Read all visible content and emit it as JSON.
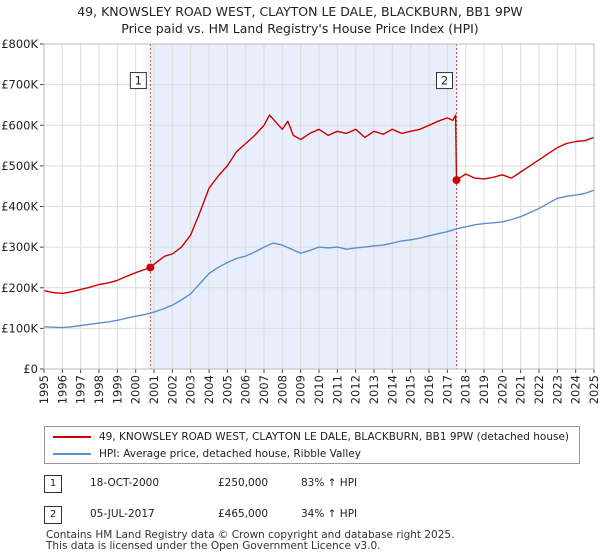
{
  "title_line1": "49, KNOWSLEY ROAD WEST, CLAYTON LE DALE, BLACKBURN, BB1 9PW",
  "title_line2": "Price paid vs. HM Land Registry's House Price Index (HPI)",
  "chart_data": {
    "type": "line",
    "title": "49, KNOWSLEY ROAD WEST, CLAYTON LE DALE, BLACKBURN, BB1 9PW — Price paid vs. HM Land Registry's House Price Index (HPI)",
    "xlim": [
      1995,
      2025
    ],
    "ylim": [
      0,
      800000
    ],
    "grid": true,
    "legend_position": "below",
    "x_ticks": [
      "1995",
      "1996",
      "1997",
      "1998",
      "1999",
      "2000",
      "2001",
      "2002",
      "2003",
      "2004",
      "2005",
      "2006",
      "2007",
      "2008",
      "2009",
      "2010",
      "2011",
      "2012",
      "2013",
      "2014",
      "2015",
      "2016",
      "2017",
      "2018",
      "2019",
      "2020",
      "2021",
      "2022",
      "2023",
      "2024",
      "2025"
    ],
    "y_ticks": [
      {
        "value": 0,
        "label": "£0"
      },
      {
        "value": 100000,
        "label": "£100K"
      },
      {
        "value": 200000,
        "label": "£200K"
      },
      {
        "value": 300000,
        "label": "£300K"
      },
      {
        "value": 400000,
        "label": "£400K"
      },
      {
        "value": 500000,
        "label": "£500K"
      },
      {
        "value": 600000,
        "label": "£600K"
      },
      {
        "value": 700000,
        "label": "£700K"
      },
      {
        "value": 800000,
        "label": "£800K"
      }
    ],
    "shaded_range": [
      2000.8,
      2017.5
    ],
    "series": [
      {
        "name": "49, KNOWSLEY ROAD WEST, CLAYTON LE DALE, BLACKBURN, BB1 9PW (detached house)",
        "color": "#cc0000",
        "x": [
          1995.0,
          1995.5,
          1996.0,
          1996.5,
          1997.0,
          1997.5,
          1998.0,
          1998.5,
          1999.0,
          1999.5,
          2000.0,
          2000.5,
          2000.8,
          2001.2,
          2001.6,
          2002.0,
          2002.5,
          2003.0,
          2003.5,
          2004.0,
          2004.5,
          2005.0,
          2005.5,
          2006.0,
          2006.5,
          2007.0,
          2007.3,
          2007.6,
          2008.0,
          2008.3,
          2008.6,
          2009.0,
          2009.5,
          2010.0,
          2010.5,
          2011.0,
          2011.5,
          2012.0,
          2012.5,
          2013.0,
          2013.5,
          2014.0,
          2014.5,
          2015.0,
          2015.5,
          2016.0,
          2016.5,
          2017.0,
          2017.3,
          2017.45,
          2017.5,
          2018.0,
          2018.5,
          2019.0,
          2019.5,
          2020.0,
          2020.5,
          2021.0,
          2021.5,
          2022.0,
          2022.5,
          2023.0,
          2023.5,
          2024.0,
          2024.5,
          2025.0
        ],
        "values": [
          193000,
          188000,
          186000,
          190000,
          196000,
          201000,
          208000,
          212000,
          218000,
          228000,
          237000,
          245000,
          250000,
          265000,
          278000,
          283000,
          300000,
          330000,
          385000,
          445000,
          475000,
          500000,
          535000,
          555000,
          575000,
          600000,
          625000,
          610000,
          590000,
          610000,
          575000,
          565000,
          580000,
          590000,
          575000,
          585000,
          580000,
          590000,
          570000,
          585000,
          578000,
          590000,
          580000,
          585000,
          590000,
          600000,
          610000,
          618000,
          612000,
          625000,
          465000,
          480000,
          470000,
          468000,
          472000,
          478000,
          470000,
          485000,
          500000,
          515000,
          530000,
          545000,
          555000,
          560000,
          562000,
          570000
        ]
      },
      {
        "name": "HPI: Average price, detached house, Ribble Valley",
        "color": "#5b8fcf",
        "x": [
          1995.0,
          1995.5,
          1996.0,
          1996.5,
          1997.0,
          1997.5,
          1998.0,
          1998.5,
          1999.0,
          1999.5,
          2000.0,
          2000.5,
          2001.0,
          2001.5,
          2002.0,
          2002.5,
          2003.0,
          2003.5,
          2004.0,
          2004.5,
          2005.0,
          2005.5,
          2006.0,
          2006.5,
          2007.0,
          2007.5,
          2008.0,
          2008.5,
          2009.0,
          2009.5,
          2010.0,
          2010.5,
          2011.0,
          2011.5,
          2012.0,
          2012.5,
          2013.0,
          2013.5,
          2014.0,
          2014.5,
          2015.0,
          2015.5,
          2016.0,
          2016.5,
          2017.0,
          2017.5,
          2018.0,
          2018.5,
          2019.0,
          2019.5,
          2020.0,
          2020.5,
          2021.0,
          2021.5,
          2022.0,
          2022.5,
          2023.0,
          2023.5,
          2024.0,
          2024.5,
          2025.0
        ],
        "values": [
          104000,
          103000,
          102000,
          104000,
          107000,
          110000,
          113000,
          116000,
          120000,
          125000,
          130000,
          134000,
          140000,
          148000,
          157000,
          170000,
          185000,
          210000,
          235000,
          250000,
          262000,
          272000,
          278000,
          288000,
          300000,
          310000,
          305000,
          295000,
          285000,
          292000,
          300000,
          298000,
          300000,
          295000,
          298000,
          300000,
          303000,
          305000,
          310000,
          315000,
          318000,
          322000,
          328000,
          333000,
          338000,
          345000,
          350000,
          355000,
          358000,
          360000,
          362000,
          368000,
          375000,
          385000,
          395000,
          408000,
          420000,
          425000,
          428000,
          432000,
          440000
        ]
      }
    ],
    "annotations": [
      {
        "label": "1",
        "x": 2000.8,
        "y": 250000
      },
      {
        "label": "2",
        "x": 2017.5,
        "y": 465000
      }
    ]
  },
  "legend": {
    "items": [
      {
        "label": "49, KNOWSLEY ROAD WEST, CLAYTON LE DALE, BLACKBURN, BB1 9PW (detached house)",
        "color": "#cc0000"
      },
      {
        "label": "HPI: Average price, detached house, Ribble Valley",
        "color": "#5b8fcf"
      }
    ]
  },
  "sales": [
    {
      "num": "1",
      "date": "18-OCT-2000",
      "price": "£250,000",
      "hpi": "83% ↑ HPI"
    },
    {
      "num": "2",
      "date": "05-JUL-2017",
      "price": "£465,000",
      "hpi": "34% ↑ HPI"
    }
  ],
  "footer": {
    "line1": "Contains HM Land Registry data © Crown copyright and database right 2025.",
    "line2": "This data is licensed under the Open Government Licence v3.0."
  }
}
